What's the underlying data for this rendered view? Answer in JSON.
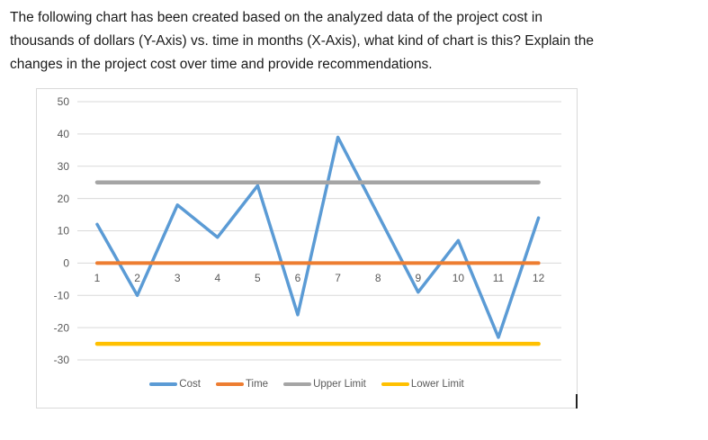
{
  "document": {
    "question_lines": [
      "The following chart has been created based on the analyzed data of the project cost in",
      "thousands of dollars (Y-Axis) vs. time in months (X-Axis), what kind of chart is this? Explain the",
      "changes in the project cost over time and provide recommendations."
    ]
  },
  "chart_data": {
    "type": "line",
    "title": "",
    "xlabel": "",
    "ylabel": "",
    "x": [
      1,
      2,
      3,
      4,
      5,
      6,
      7,
      8,
      9,
      10,
      11,
      12
    ],
    "series": [
      {
        "name": "Cost",
        "color": "#5B9BD5",
        "stroke_width": 3.5,
        "values": [
          12,
          -10,
          18,
          8,
          24,
          -16,
          39,
          15,
          -9,
          7,
          -23,
          14
        ]
      },
      {
        "name": "Time",
        "color": "#ED7D31",
        "stroke_width": 4,
        "values": [
          0,
          0,
          0,
          0,
          0,
          0,
          0,
          0,
          0,
          0,
          0,
          0
        ]
      },
      {
        "name": "Upper Limit",
        "color": "#A5A5A5",
        "stroke_width": 4.5,
        "values": [
          25,
          25,
          25,
          25,
          25,
          25,
          25,
          25,
          25,
          25,
          25,
          25
        ]
      },
      {
        "name": "Lower Limit",
        "color": "#FFC000",
        "stroke_width": 4.5,
        "values": [
          -25,
          -25,
          -25,
          -25,
          -25,
          -25,
          -25,
          -25,
          -25,
          -25,
          -25,
          -25
        ]
      }
    ],
    "yticks": [
      50,
      40,
      30,
      20,
      10,
      0,
      -10,
      -20,
      -30
    ],
    "ylim": [
      -30,
      50
    ],
    "grid": true,
    "grid_color": "#D9D9D9",
    "axis_label_color": "#595959",
    "legend_position": "bottom"
  }
}
